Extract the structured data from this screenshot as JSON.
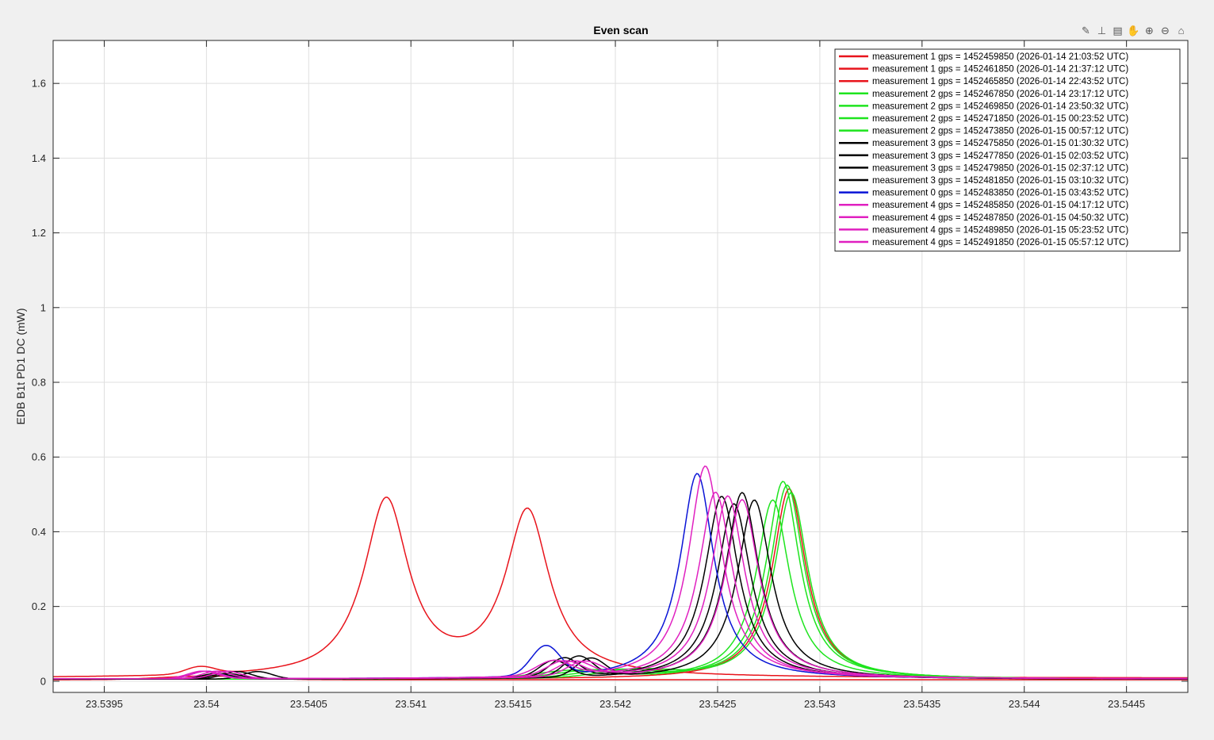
{
  "toolbar": {
    "icons": [
      "brush-icon",
      "data-tips-icon",
      "restore-view-icon",
      "pan-icon",
      "zoom-in-icon",
      "zoom-out-icon",
      "home-icon"
    ]
  },
  "chart_data": {
    "type": "line",
    "title": "Even scan",
    "xlabel": "",
    "ylabel": "EDB B1t PD1 DC (mW)",
    "xlim": [
      23.53925,
      23.5448
    ],
    "ylim": [
      -0.03,
      1.715
    ],
    "xticks": [
      23.5395,
      23.54,
      23.5405,
      23.541,
      23.5415,
      23.542,
      23.5425,
      23.543,
      23.5435,
      23.544,
      23.5445
    ],
    "xtick_labels": [
      "23.5395",
      "23.54",
      "23.5405",
      "23.541",
      "23.5415",
      "23.542",
      "23.5425",
      "23.543",
      "23.5435",
      "23.544",
      "23.5445"
    ],
    "yticks": [
      0,
      0.2,
      0.4,
      0.6,
      0.8,
      1,
      1.2,
      1.4,
      1.6
    ],
    "ytick_labels": [
      "0",
      "0.2",
      "0.4",
      "0.6",
      "0.8",
      "1",
      "1.2",
      "1.4",
      "1.6"
    ],
    "grid": true,
    "legend_position": "top-right",
    "series": [
      {
        "name": "measurement 1 gps = 1452459850 (2026-01-14 21:03:52 UTC)",
        "color": "#e8141c",
        "peaks": [
          {
            "x": 23.54088,
            "h": 0.45,
            "w": 0.00013
          },
          {
            "x": 23.54157,
            "h": 0.44,
            "w": 0.00013
          }
        ],
        "bumps": [
          {
            "x": 23.53997,
            "h": 0.02,
            "w": 0.0001
          },
          {
            "x": 23.54085,
            "h": 0.02,
            "w": 0.0002
          }
        ],
        "base": 0.008
      },
      {
        "name": "measurement 1 gps = 1452461850 (2026-01-14 21:37:12 UTC)",
        "color": "#e8141c",
        "peaks": [
          {
            "x": 23.54285,
            "h": 0.51,
            "w": 0.0001
          }
        ],
        "bumps": [],
        "base": 0.005
      },
      {
        "name": "measurement 1 gps = 1452465850 (2026-01-14 22:43:52 UTC)",
        "color": "#e8141c",
        "peaks": [],
        "bumps": [
          {
            "x": 23.54,
            "h": 0.01,
            "w": 0.0003
          }
        ],
        "base": 0.004
      },
      {
        "name": "measurement 2 gps = 1452467850 (2026-01-14 23:17:12 UTC)",
        "color": "#1ee41e",
        "peaks": [
          {
            "x": 23.54277,
            "h": 0.48,
            "w": 0.0001
          }
        ],
        "bumps": [
          {
            "x": 23.5419,
            "h": 0.02,
            "w": 0.00025
          }
        ],
        "base": 0.005
      },
      {
        "name": "measurement 2 gps = 1452469850 (2026-01-14 23:50:32 UTC)",
        "color": "#1ee41e",
        "peaks": [
          {
            "x": 23.54284,
            "h": 0.52,
            "w": 0.0001
          }
        ],
        "bumps": [
          {
            "x": 23.542,
            "h": 0.02,
            "w": 0.00025
          }
        ],
        "base": 0.005
      },
      {
        "name": "measurement 2 gps = 1452471850 (2026-01-15 00:23:52 UTC)",
        "color": "#1ee41e",
        "peaks": [
          {
            "x": 23.54286,
            "h": 0.5,
            "w": 0.0001
          }
        ],
        "bumps": [
          {
            "x": 23.5421,
            "h": 0.02,
            "w": 0.00025
          }
        ],
        "base": 0.005
      },
      {
        "name": "measurement 2 gps = 1452473850 (2026-01-15 00:57:12 UTC)",
        "color": "#1ee41e",
        "peaks": [
          {
            "x": 23.54282,
            "h": 0.53,
            "w": 0.0001
          }
        ],
        "bumps": [
          {
            "x": 23.5418,
            "h": 0.02,
            "w": 0.00025
          }
        ],
        "base": 0.005
      },
      {
        "name": "measurement 3 gps = 1452475850 (2026-01-15 01:30:32 UTC)",
        "color": "#000000",
        "peaks": [
          {
            "x": 23.54252,
            "h": 0.49,
            "w": 0.0001
          }
        ],
        "bumps": [
          {
            "x": 23.54175,
            "h": 0.05,
            "w": 0.0001
          },
          {
            "x": 23.54005,
            "h": 0.015,
            "w": 0.0001
          }
        ],
        "base": 0.005
      },
      {
        "name": "measurement 3 gps = 1452477850 (2026-01-15 02:03:52 UTC)",
        "color": "#000000",
        "peaks": [
          {
            "x": 23.54262,
            "h": 0.5,
            "w": 0.0001
          }
        ],
        "bumps": [
          {
            "x": 23.54182,
            "h": 0.055,
            "w": 0.0001
          },
          {
            "x": 23.54015,
            "h": 0.02,
            "w": 0.0001
          }
        ],
        "base": 0.005
      },
      {
        "name": "measurement 3 gps = 1452479850 (2026-01-15 02:37:12 UTC)",
        "color": "#000000",
        "peaks": [
          {
            "x": 23.54268,
            "h": 0.48,
            "w": 0.0001
          }
        ],
        "bumps": [
          {
            "x": 23.54188,
            "h": 0.05,
            "w": 0.0001
          },
          {
            "x": 23.54025,
            "h": 0.02,
            "w": 0.0001
          }
        ],
        "base": 0.005
      },
      {
        "name": "measurement 3 gps = 1452481850 (2026-01-15 03:10:32 UTC)",
        "color": "#000000",
        "peaks": [
          {
            "x": 23.54258,
            "h": 0.47,
            "w": 0.0001
          }
        ],
        "bumps": [
          {
            "x": 23.5417,
            "h": 0.045,
            "w": 0.0001
          },
          {
            "x": 23.5401,
            "h": 0.015,
            "w": 0.0001
          }
        ],
        "base": 0.005
      },
      {
        "name": "measurement 0 gps = 1452483850 (2026-01-15 03:43:52 UTC)",
        "color": "#0a14d6",
        "peaks": [
          {
            "x": 23.5424,
            "h": 0.55,
            "w": 0.0001
          }
        ],
        "bumps": [
          {
            "x": 23.54166,
            "h": 0.08,
            "w": 0.0001
          },
          {
            "x": 23.54,
            "h": 0.02,
            "w": 0.0001
          }
        ],
        "base": 0.006
      },
      {
        "name": "measurement 4 gps = 1452485850 (2026-01-15 04:17:12 UTC)",
        "color": "#e020c0",
        "peaks": [
          {
            "x": 23.54244,
            "h": 0.57,
            "w": 0.0001
          }
        ],
        "bumps": [
          {
            "x": 23.5417,
            "h": 0.04,
            "w": 0.00012
          },
          {
            "x": 23.53998,
            "h": 0.02,
            "w": 0.0001
          }
        ],
        "base": 0.006
      },
      {
        "name": "measurement 4 gps = 1452487850 (2026-01-15 04:50:32 UTC)",
        "color": "#e020c0",
        "peaks": [
          {
            "x": 23.54249,
            "h": 0.5,
            "w": 0.0001
          }
        ],
        "bumps": [
          {
            "x": 23.54175,
            "h": 0.04,
            "w": 0.00012
          },
          {
            "x": 23.54,
            "h": 0.02,
            "w": 0.0001
          }
        ],
        "base": 0.006
      },
      {
        "name": "measurement 4 gps = 1452489850 (2026-01-15 05:23:52 UTC)",
        "color": "#e020c0",
        "peaks": [
          {
            "x": 23.54255,
            "h": 0.49,
            "w": 0.0001
          }
        ],
        "bumps": [
          {
            "x": 23.5418,
            "h": 0.04,
            "w": 0.00012
          },
          {
            "x": 23.54005,
            "h": 0.02,
            "w": 0.0001
          }
        ],
        "base": 0.006
      },
      {
        "name": "measurement 4 gps = 1452491850 (2026-01-15 05:57:12 UTC)",
        "color": "#e020c0",
        "peaks": [
          {
            "x": 23.54262,
            "h": 0.48,
            "w": 0.0001
          }
        ],
        "bumps": [
          {
            "x": 23.54185,
            "h": 0.04,
            "w": 0.00012
          },
          {
            "x": 23.5401,
            "h": 0.02,
            "w": 0.0001
          }
        ],
        "base": 0.006
      }
    ]
  }
}
